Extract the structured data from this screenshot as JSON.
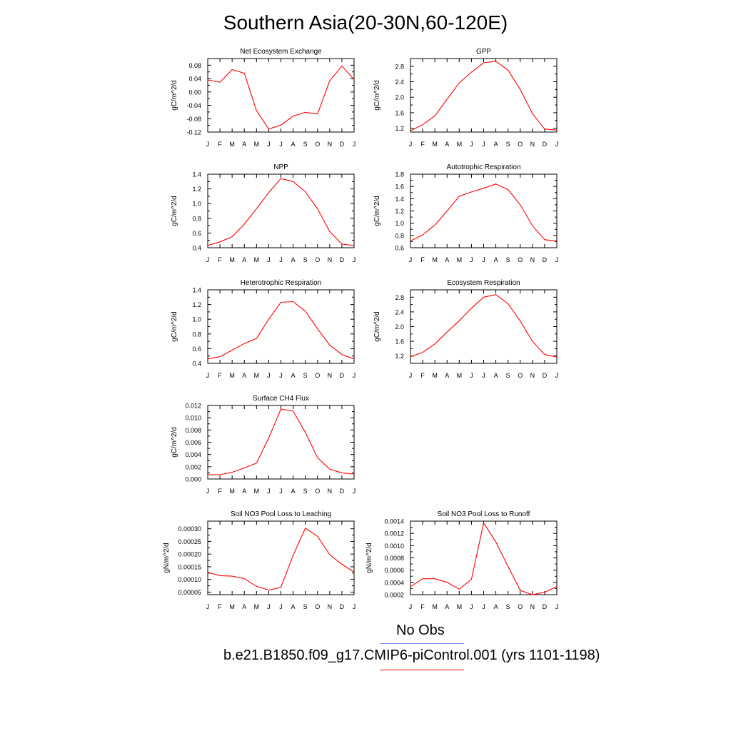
{
  "title": "Southern Asia(20-30N,60-120E)",
  "month_labels": [
    "J",
    "F",
    "M",
    "A",
    "M",
    "J",
    "J",
    "A",
    "S",
    "O",
    "N",
    "D",
    "J"
  ],
  "chart_data": [
    {
      "type": "line",
      "title": "Net Ecosystem Exchange",
      "ylabel": "gC/m^2/d",
      "ylim": [
        -0.12,
        0.1
      ],
      "yticks": [
        -0.12,
        -0.08,
        -0.04,
        0.0,
        0.04,
        0.08
      ],
      "ytick_labels": [
        "-0.12",
        "-0.08",
        "-0.04",
        "0.00",
        "0.04",
        "0.08"
      ],
      "series": [
        {
          "color": "#ff0000",
          "values": [
            0.036,
            0.029,
            0.067,
            0.056,
            -0.056,
            -0.111,
            -0.099,
            -0.072,
            -0.061,
            -0.066,
            0.033,
            0.078,
            0.037
          ]
        }
      ]
    },
    {
      "type": "line",
      "title": "GPP",
      "ylabel": "gC/m^2/d",
      "ylim": [
        1.1,
        3.0
      ],
      "yticks": [
        1.2,
        1.6,
        2.0,
        2.4,
        2.8
      ],
      "ytick_labels": [
        "1.2",
        "1.6",
        "2.0",
        "2.4",
        "2.8"
      ],
      "series": [
        {
          "color": "#ff0000",
          "values": [
            1.13,
            1.29,
            1.52,
            1.95,
            2.37,
            2.65,
            2.89,
            2.93,
            2.7,
            2.2,
            1.58,
            1.18,
            1.15
          ]
        }
      ]
    },
    {
      "type": "line",
      "title": "NPP",
      "ylabel": "gC/m^2/d",
      "ylim": [
        0.4,
        1.4
      ],
      "yticks": [
        0.4,
        0.6,
        0.8,
        1.0,
        1.2,
        1.4
      ],
      "ytick_labels": [
        "0.4",
        "0.6",
        "0.8",
        "1.0",
        "1.2",
        "1.4"
      ],
      "series": [
        {
          "color": "#ff0000",
          "values": [
            0.43,
            0.48,
            0.55,
            0.72,
            0.93,
            1.15,
            1.34,
            1.3,
            1.16,
            0.93,
            0.62,
            0.45,
            0.43
          ]
        }
      ]
    },
    {
      "type": "line",
      "title": "Autotrophic Respiration",
      "ylabel": "gC/m^2/d",
      "ylim": [
        0.6,
        1.8
      ],
      "yticks": [
        0.6,
        0.8,
        1.0,
        1.2,
        1.4,
        1.6,
        1.8
      ],
      "ytick_labels": [
        "0.6",
        "0.8",
        "1.0",
        "1.2",
        "1.4",
        "1.6",
        "1.8"
      ],
      "series": [
        {
          "color": "#ff0000",
          "values": [
            0.71,
            0.81,
            0.97,
            1.2,
            1.44,
            1.51,
            1.57,
            1.64,
            1.55,
            1.3,
            0.96,
            0.73,
            0.71
          ]
        }
      ]
    },
    {
      "type": "line",
      "title": "Heterotrophic Respiration",
      "ylabel": "gC/m^2/d",
      "ylim": [
        0.4,
        1.4
      ],
      "yticks": [
        0.4,
        0.6,
        0.8,
        1.0,
        1.2,
        1.4
      ],
      "ytick_labels": [
        "0.4",
        "0.6",
        "0.8",
        "1.0",
        "1.2",
        "1.4"
      ],
      "series": [
        {
          "color": "#ff0000",
          "values": [
            0.46,
            0.49,
            0.58,
            0.67,
            0.74,
            1.0,
            1.23,
            1.24,
            1.11,
            0.87,
            0.65,
            0.52,
            0.46
          ]
        }
      ]
    },
    {
      "type": "line",
      "title": "Ecosystem Respiration",
      "ylabel": "gC/m^2/d",
      "ylim": [
        1.0,
        3.0
      ],
      "yticks": [
        1.2,
        1.6,
        2.0,
        2.4,
        2.8
      ],
      "ytick_labels": [
        "1.2",
        "1.6",
        "2.0",
        "2.4",
        "2.8"
      ],
      "series": [
        {
          "color": "#ff0000",
          "values": [
            1.18,
            1.3,
            1.53,
            1.85,
            2.16,
            2.5,
            2.8,
            2.87,
            2.62,
            2.15,
            1.6,
            1.24,
            1.17
          ]
        }
      ]
    },
    {
      "type": "line",
      "title": "Surface CH4 Flux",
      "ylabel": "gC/m^2/d",
      "ylim": [
        0.0,
        0.012
      ],
      "yticks": [
        0.0,
        0.002,
        0.004,
        0.006,
        0.008,
        0.01,
        0.012
      ],
      "ytick_labels": [
        "0.000",
        "0.002",
        "0.004",
        "0.006",
        "0.008",
        "0.010",
        "0.012"
      ],
      "series": [
        {
          "color": "#ff0000",
          "values": [
            0.0007,
            0.0007,
            0.0011,
            0.0018,
            0.0026,
            0.0067,
            0.0114,
            0.0111,
            0.0076,
            0.0035,
            0.0016,
            0.001,
            0.0008
          ]
        }
      ]
    },
    {
      "type": "line",
      "title": "Soil NO3 Pool Loss to Leaching",
      "ylabel": "gN/m^2/d",
      "ylim": [
        4e-05,
        0.00033
      ],
      "yticks": [
        5e-05,
        0.0001,
        0.00015,
        0.0002,
        0.00025,
        0.0003
      ],
      "ytick_labels": [
        "0.00005",
        "0.00010",
        "0.00015",
        "0.00020",
        "0.00025",
        "0.00030"
      ],
      "series": [
        {
          "color": "#ff0000",
          "values": [
            0.000128,
            0.000115,
            0.000113,
            0.000103,
            7.3e-05,
            5.8e-05,
            6.9e-05,
            0.000195,
            0.000302,
            0.00027,
            0.000198,
            0.00016,
            0.000129
          ]
        }
      ]
    },
    {
      "type": "line",
      "title": "Soil NO3 Pool Loss to Runoff",
      "ylabel": "gN/m^2/d",
      "ylim": [
        0.0002,
        0.0014
      ],
      "yticks": [
        0.0002,
        0.0004,
        0.0006,
        0.0008,
        0.001,
        0.0012,
        0.0014
      ],
      "ytick_labels": [
        "0.0002",
        "0.0004",
        "0.0006",
        "0.0008",
        "0.0010",
        "0.0012",
        "0.0014"
      ],
      "series": [
        {
          "color": "#ff0000",
          "values": [
            0.00033,
            0.00046,
            0.00046,
            0.0004,
            0.00029,
            0.00045,
            0.00137,
            0.00106,
            0.00066,
            0.00027,
            0.0002,
            0.00024,
            0.00033
          ]
        }
      ]
    }
  ],
  "legend": {
    "obs_label": "No Obs",
    "obs_color": "#8080ff",
    "model_label": "b.e21.B1850.f09_g17.CMIP6-piControl.001 (yrs 1101-1198)",
    "model_color": "#ff0000"
  }
}
